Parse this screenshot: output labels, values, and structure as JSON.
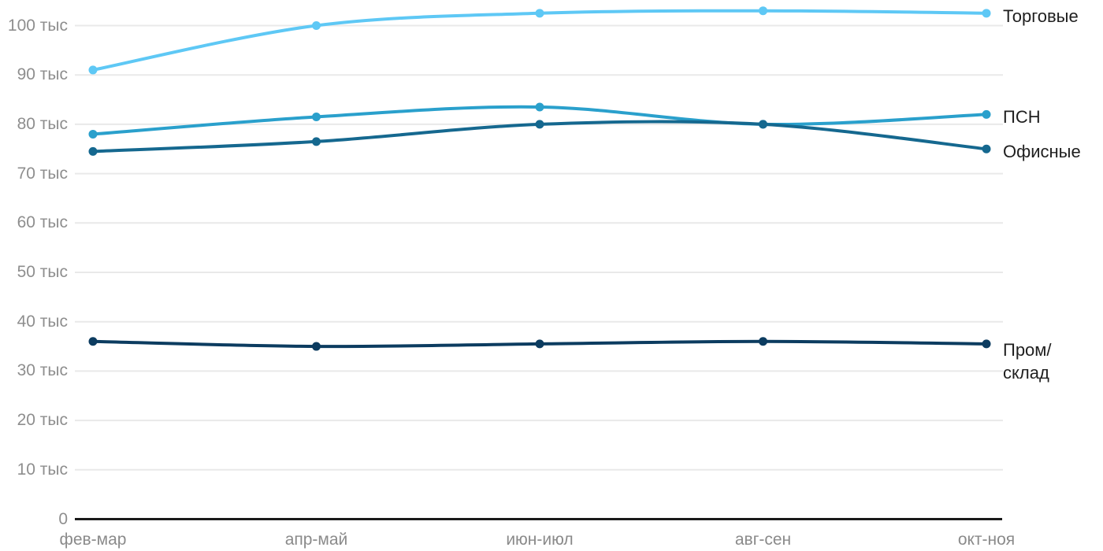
{
  "chart_data": {
    "type": "line",
    "title": "",
    "xlabel": "",
    "ylabel": "",
    "unit": "тыс",
    "grid": true,
    "legend_position": "right-of-line-end",
    "categories": [
      "фев-мар",
      "апр-май",
      "июн-июл",
      "авг-сен",
      "окт-ноя"
    ],
    "y_axis": {
      "range": [
        0,
        105
      ],
      "ticks": [
        {
          "value": 0,
          "label": "0"
        },
        {
          "value": 10,
          "label": "10 тыс"
        },
        {
          "value": 20,
          "label": "20 тыс"
        },
        {
          "value": 30,
          "label": "30 тыс"
        },
        {
          "value": 40,
          "label": "40 тыс"
        },
        {
          "value": 50,
          "label": "50 тыс"
        },
        {
          "value": 60,
          "label": "60 тыс"
        },
        {
          "value": 70,
          "label": "70 тыс"
        },
        {
          "value": 80,
          "label": "80 тыс"
        },
        {
          "value": 90,
          "label": "90 тыс"
        },
        {
          "value": 100,
          "label": "100 тыс"
        }
      ]
    },
    "series": [
      {
        "key": "torgovye",
        "name": "Торговые",
        "color": "#5EC8F5",
        "values": [
          91,
          100,
          102.5,
          103,
          102.5
        ],
        "label_lines": [
          "Торговые"
        ]
      },
      {
        "key": "psn",
        "name": "ПСН",
        "color": "#2AA0CC",
        "values": [
          78,
          81.5,
          83.5,
          80,
          82
        ],
        "label_lines": [
          "ПСН"
        ]
      },
      {
        "key": "ofisnye",
        "name": "Офисные",
        "color": "#15688F",
        "values": [
          74.5,
          76.5,
          80,
          80,
          75
        ],
        "label_lines": [
          "Офисные"
        ]
      },
      {
        "key": "prom-sklad",
        "name": "Пром/склад",
        "color": "#0C3C60",
        "values": [
          36,
          35,
          35.5,
          36,
          35.5
        ],
        "label_lines": [
          "Пром/",
          "склад"
        ]
      }
    ]
  },
  "colors": {
    "background": "#ffffff",
    "grid_line": "#e9e9e9",
    "axis_line": "#1a1a1a",
    "tick_label": "#8e8e8e",
    "series_label": "#1f1f1f"
  }
}
